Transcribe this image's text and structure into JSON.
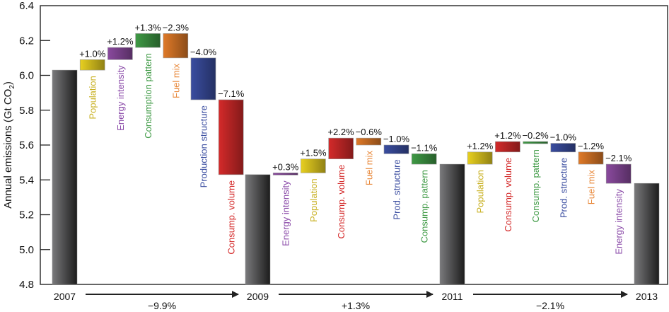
{
  "chart_data": {
    "type": "bar",
    "subtype": "waterfall",
    "ylabel": "Annual emissions (Gt CO",
    "ylabel_sub": "2",
    "ylabel_close": ")",
    "ylim": [
      4.8,
      6.4
    ],
    "yticks": [
      "4.8",
      "5.0",
      "5.2",
      "5.4",
      "5.6",
      "5.8",
      "6.0",
      "6.2",
      "6.4"
    ],
    "years": [
      {
        "label": "2007",
        "value": 6.03
      },
      {
        "label": "2009",
        "value": 5.43
      },
      {
        "label": "2011",
        "value": 5.49
      },
      {
        "label": "2013",
        "value": 5.38
      }
    ],
    "periods": [
      {
        "change_label": "−9.9%",
        "steps": [
          {
            "name": "Population",
            "pct": "+1.0%",
            "from": 6.03,
            "to": 6.09,
            "color": "#e8d020"
          },
          {
            "name": "Energy intensity",
            "pct": "+1.2%",
            "from": 6.09,
            "to": 6.16,
            "color": "#8a4a9e"
          },
          {
            "name": "Consumption pattern",
            "pct": "+1.3%",
            "from": 6.16,
            "to": 6.24,
            "color": "#3f9a45"
          },
          {
            "name": "Fuel mix",
            "pct": "−2.3%",
            "from": 6.24,
            "to": 6.1,
            "color": "#e07a28"
          },
          {
            "name": "Production structure",
            "pct": "−4.0%",
            "from": 6.1,
            "to": 5.86,
            "color": "#3a4da0"
          },
          {
            "name": "Consump. volume",
            "pct": "−7.1%",
            "from": 5.86,
            "to": 5.43,
            "color": "#d42a2a"
          }
        ]
      },
      {
        "change_label": "+1.3%",
        "steps": [
          {
            "name": "Energy intensity",
            "pct": "+0.3%",
            "from": 5.43,
            "to": 5.44,
            "color": "#8a4a9e"
          },
          {
            "name": "Population",
            "pct": "+1.5%",
            "from": 5.44,
            "to": 5.52,
            "color": "#e8d020"
          },
          {
            "name": "Consump. volume",
            "pct": "+2.2%",
            "from": 5.52,
            "to": 5.64,
            "color": "#d42a2a"
          },
          {
            "name": "Fuel mix",
            "pct": "−0.6%",
            "from": 5.64,
            "to": 5.6,
            "color": "#e07a28"
          },
          {
            "name": "Prod. structure",
            "pct": "−1.0%",
            "from": 5.6,
            "to": 5.55,
            "color": "#3a4da0"
          },
          {
            "name": "Consump. pattern",
            "pct": "−1.1%",
            "from": 5.55,
            "to": 5.49,
            "color": "#3f9a45"
          }
        ]
      },
      {
        "change_label": "−2.1%",
        "steps": [
          {
            "name": "Population",
            "pct": "+1.2%",
            "from": 5.49,
            "to": 5.56,
            "color": "#e8d020"
          },
          {
            "name": "Consump. volume",
            "pct": "+1.2%",
            "from": 5.56,
            "to": 5.62,
            "color": "#d42a2a"
          },
          {
            "name": "Consump. pattern",
            "pct": "−0.2%",
            "from": 5.62,
            "to": 5.61,
            "color": "#3f9a45"
          },
          {
            "name": "Prod. structure",
            "pct": "−1.0%",
            "from": 5.61,
            "to": 5.56,
            "color": "#3a4da0"
          },
          {
            "name": "Fuel mix",
            "pct": "−1.2%",
            "from": 5.56,
            "to": 5.49,
            "color": "#e07a28"
          },
          {
            "name": "Energy intensity",
            "pct": "−2.1%",
            "from": 5.49,
            "to": 5.38,
            "color": "#8a4a9e"
          }
        ]
      }
    ],
    "category_label_colors": {
      "Population": "#c8b020",
      "Energy intensity": "#8a4aa8",
      "Consumption pattern": "#3f9a45",
      "Consump. pattern": "#3f9a45",
      "Fuel mix": "#e8883a",
      "Production structure": "#3a4da0",
      "Prod. structure": "#3a4da0",
      "Consump. volume": "#d42a2a"
    }
  }
}
